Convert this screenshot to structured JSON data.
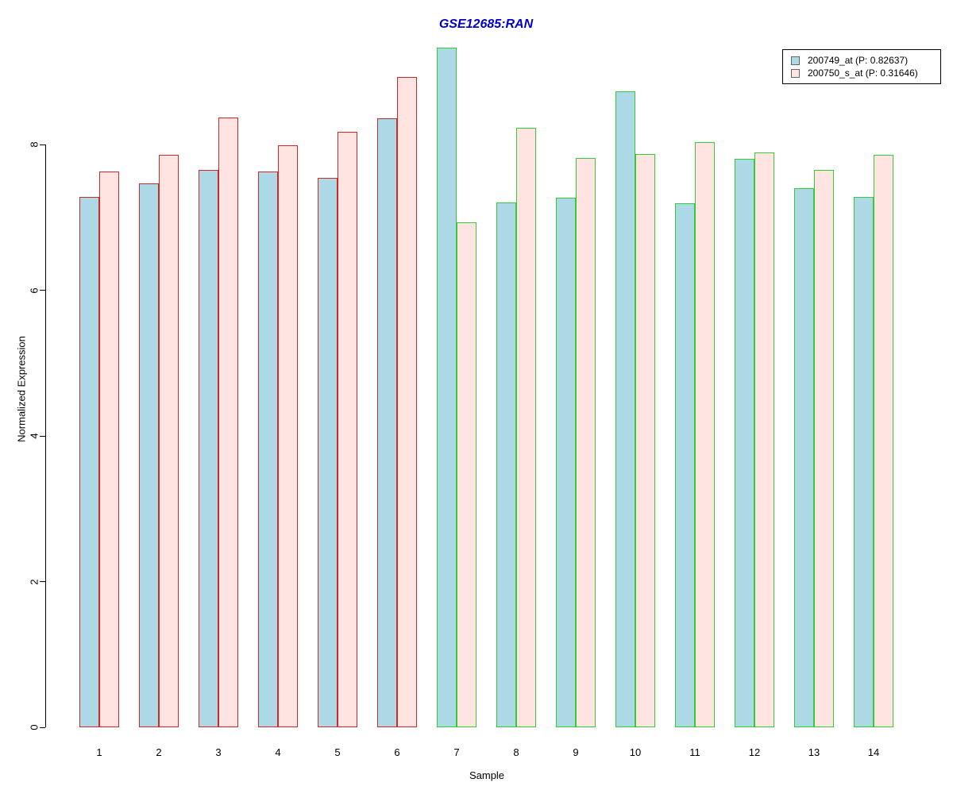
{
  "chart_data": {
    "type": "bar",
    "title": "GSE12685:RAN",
    "xlabel": "Sample",
    "ylabel": "Normalized Expression",
    "categories": [
      "1",
      "2",
      "3",
      "4",
      "5",
      "6",
      "7",
      "8",
      "9",
      "10",
      "11",
      "12",
      "13",
      "14"
    ],
    "yticks": [
      0,
      2,
      4,
      6,
      8
    ],
    "ylim": [
      0,
      9.4
    ],
    "grid": false,
    "legend_position": "top-right",
    "series": [
      {
        "id": "200749_at",
        "name": "200749_at (P: 0.82637)",
        "fill": "#ADD8E6",
        "values": [
          7.29,
          7.47,
          7.66,
          7.63,
          7.55,
          8.36,
          9.34,
          7.21,
          7.27,
          8.74,
          7.2,
          7.81,
          7.41,
          7.29
        ]
      },
      {
        "id": "200750_s_at",
        "name": "200750_s_at (P: 0.31646)",
        "fill": "#FFE4E1",
        "values": [
          7.63,
          7.86,
          8.38,
          7.99,
          8.18,
          8.93,
          6.94,
          8.23,
          7.82,
          7.87,
          8.04,
          7.9,
          7.65,
          7.86
        ]
      }
    ],
    "group_border_colors": [
      "#CC2929",
      "#CC2929",
      "#CC2929",
      "#CC2929",
      "#CC2929",
      "#CC2929",
      "#32CD32",
      "#32CD32",
      "#32CD32",
      "#32CD32",
      "#32CD32",
      "#32CD32",
      "#32CD32",
      "#32CD32"
    ]
  },
  "colors": {
    "title": "#0000CC",
    "axis": "#000000",
    "background": "#FFFFFF",
    "legend_border": "#000000",
    "legend_swatch_border": "#666666"
  }
}
